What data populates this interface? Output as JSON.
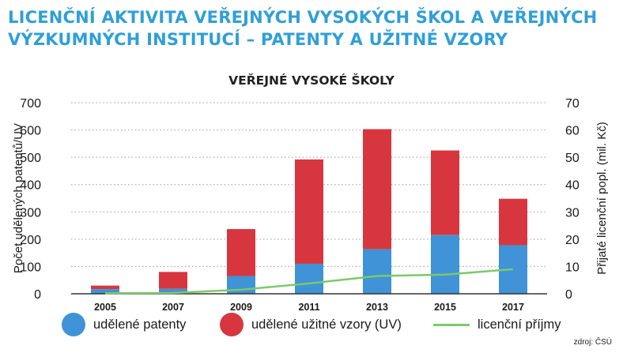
{
  "heading": {
    "line1": "LICENČNÍ AKTIVITA VEŘEJNÝCH VYSOKÝCH ŠKOL A VEŘEJNÝCH",
    "line2": "VÝZKUMNÝCH INSTITUCÍ – PATENTY A UŽITNÉ VZORY"
  },
  "source": "zdroj: ČSÚ",
  "legend": [
    {
      "label": "udělené patenty"
    },
    {
      "label": "udělené užitné vzory (UV)"
    },
    {
      "label": "licenční příjmy"
    }
  ],
  "colors": {
    "patents": "#3f93d6",
    "utility_models": "#d8363f",
    "income": "#7cc96a",
    "heading": "#2f9fd8"
  },
  "chart_data": {
    "type": "bar",
    "stacked": true,
    "title": "VEŘEJNÉ VYSOKÉ ŠKOLY",
    "categories": [
      "2005",
      "2007",
      "2009",
      "2011",
      "2013",
      "2015",
      "2017"
    ],
    "series": [
      {
        "name": "udělené patenty",
        "values": [
          17,
          18,
          65,
          110,
          163,
          215,
          178
        ],
        "axis": "left"
      },
      {
        "name": "udělené užitné vzory (UV)",
        "values": [
          13,
          62,
          172,
          382,
          440,
          310,
          170
        ],
        "axis": "left"
      },
      {
        "name": "licenční příjmy",
        "type": "line",
        "values": [
          0.2,
          0.3,
          1.5,
          3.8,
          6.5,
          7,
          9
        ],
        "axis": "right"
      }
    ],
    "ylabel": "Počet udělených patentů/UV",
    "y2label": "Přijaté licenční popl. (mil. Kč)",
    "ylim": [
      0,
      700
    ],
    "y2lim": [
      0,
      70
    ],
    "yticks": [
      "0",
      "100",
      "200",
      "300",
      "400",
      "500",
      "600",
      "700"
    ],
    "y2ticks": [
      "0",
      "10",
      "20",
      "30",
      "40",
      "50",
      "60",
      "70"
    ],
    "grid": "horizontal dotted",
    "legend_position": "bottom"
  }
}
